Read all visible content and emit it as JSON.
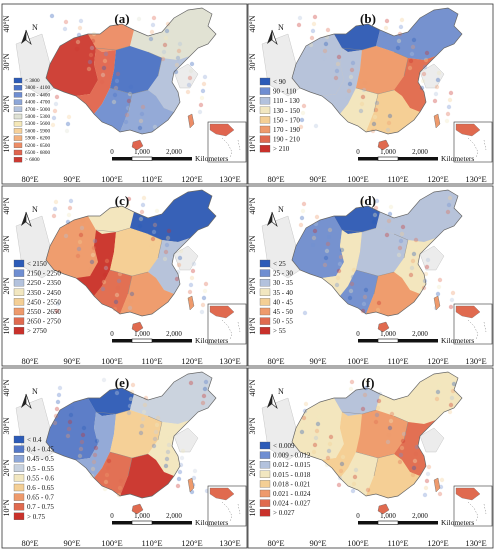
{
  "panels": [
    {
      "id": "a",
      "label": "(a)",
      "scheme": "warm_west_cool_center",
      "legend": [
        "< 3800",
        "3800 - 4100",
        "4100 - 4400",
        "4400 - 4700",
        "4700 - 5000",
        "5000 - 5300",
        "5300 - 5600",
        "5600 - 5900",
        "5900 - 6200",
        "6200 - 6500",
        "6500 - 6800",
        "> 6800"
      ],
      "legend_colors": [
        "#2c5bb8",
        "#4a72c6",
        "#6f8ed2",
        "#8ea7d8",
        "#b3c2dd",
        "#dfe2d4",
        "#f5e8b8",
        "#f6d19a",
        "#f2b07e",
        "#ec8c66",
        "#e0654f",
        "#cc3a32"
      ],
      "north": "N",
      "scalebar": {
        "ticks": [
          "0",
          "1,000",
          "2,000"
        ],
        "unit": "Kilometers"
      },
      "lat_ticks": [
        "40°N",
        "30°N",
        "20°N",
        "10°N"
      ],
      "lon_ticks": [
        "80°E",
        "90°E",
        "100°E",
        "110°E",
        "120°E",
        "130°E"
      ]
    },
    {
      "id": "b",
      "label": "(b)",
      "scheme": "cool_north_warm_east",
      "legend": [
        "< 90",
        "90 - 110",
        "110 - 130",
        "130 - 150",
        "150 - 170",
        "170 - 190",
        "190 - 210",
        "> 210"
      ],
      "legend_colors": [
        "#2c5bb8",
        "#6f8ed2",
        "#b3c2dd",
        "#f2e7c0",
        "#f4cf95",
        "#ee9a6c",
        "#e06a4f",
        "#c9312b"
      ],
      "north": "N",
      "scalebar": {
        "ticks": [
          "0",
          "1,000",
          "2,000"
        ],
        "unit": "Kilometers"
      },
      "lat_ticks": [
        "40°N",
        "30°N",
        "20°N",
        "10°N"
      ],
      "lon_ticks": [
        "80°E",
        "90°E",
        "100°E",
        "110°E",
        "120°E",
        "130°E"
      ]
    },
    {
      "id": "c",
      "label": "(c)",
      "scheme": "warm_southwest",
      "legend": [
        "< 2150",
        "2150 - 2250",
        "2250 - 2350",
        "2350 - 2450",
        "2450 - 2550",
        "2550 - 2650",
        "2650 - 2750",
        "> 2750"
      ],
      "legend_colors": [
        "#2c5bb8",
        "#6f8ed2",
        "#b3c2dd",
        "#f2e7c0",
        "#f4cf95",
        "#ee9a6c",
        "#e06a4f",
        "#c9312b"
      ],
      "north": "N",
      "scalebar": {
        "ticks": [
          "0",
          "1,000",
          "2,000"
        ],
        "unit": "Kilometers"
      },
      "lat_ticks": [
        "40°N",
        "30°N",
        "20°N",
        "10°N"
      ],
      "lon_ticks": [
        "80°E",
        "90°E",
        "100°E",
        "110°E",
        "120°E",
        "130°E"
      ]
    },
    {
      "id": "d",
      "label": "(d)",
      "scheme": "mixed_cool",
      "legend": [
        "< 25",
        "25 - 30",
        "30 - 35",
        "35 - 40",
        "40 - 45",
        "45 - 50",
        "50 - 55",
        "> 55"
      ],
      "legend_colors": [
        "#2c5bb8",
        "#6f8ed2",
        "#b3c2dd",
        "#f2e7c0",
        "#f4cf95",
        "#ee9a6c",
        "#e06a4f",
        "#c9312b"
      ],
      "north": "N",
      "scalebar": {
        "ticks": [
          "0",
          "1,000",
          "2,000"
        ],
        "unit": "Kilometers"
      },
      "lat_ticks": [
        "40°N",
        "30°N",
        "20°N",
        "10°N"
      ],
      "lon_ticks": [
        "80°E",
        "90°E",
        "100°E",
        "110°E",
        "120°E",
        "130°E"
      ]
    },
    {
      "id": "e",
      "label": "(e)",
      "scheme": "cool_north_warm_southcenter",
      "legend": [
        "< 0.4",
        "0.4 - 0.45",
        "0.45 - 0.5",
        "0.5 - 0.55",
        "0.55 - 0.6",
        "0.6 - 0.65",
        "0.65 - 0.7",
        "0.7 - 0.75",
        "> 0.75"
      ],
      "legend_colors": [
        "#2c5bb8",
        "#5478c8",
        "#8ea7d8",
        "#c8d2df",
        "#f2e7c0",
        "#f4cf95",
        "#ee9a6c",
        "#e06a4f",
        "#c9312b"
      ],
      "north": "N",
      "scalebar": {
        "ticks": [
          "0",
          "1,000",
          "2,000"
        ],
        "unit": "Kilometers"
      },
      "lat_ticks": [
        "40°N",
        "30°N",
        "20°N",
        "10°N"
      ],
      "lon_ticks": [
        "80°E",
        "90°E",
        "100°E",
        "110°E",
        "120°E",
        "130°E"
      ]
    },
    {
      "id": "f",
      "label": "(f)",
      "scheme": "warm_east",
      "legend": [
        "< 0.009",
        "0.009 - 0.012",
        "0.012 - 0.015",
        "0.015 - 0.018",
        "0.018 - 0.021",
        "0.021 - 0.024",
        "0.024 - 0.027",
        "> 0.027"
      ],
      "legend_colors": [
        "#2c5bb8",
        "#6f8ed2",
        "#b3c2dd",
        "#f2e7c0",
        "#f4cf95",
        "#ee9a6c",
        "#e06a4f",
        "#c9312b"
      ],
      "north": "N",
      "scalebar": {
        "ticks": [
          "0",
          "1,000",
          "2,000"
        ],
        "unit": "Kilometers"
      },
      "lat_ticks": [
        "40°N",
        "30°N",
        "20°N",
        "10°N"
      ],
      "lon_ticks": [
        "80°E",
        "90°E",
        "100°E",
        "110°E",
        "120°E",
        "130°E"
      ]
    }
  ]
}
